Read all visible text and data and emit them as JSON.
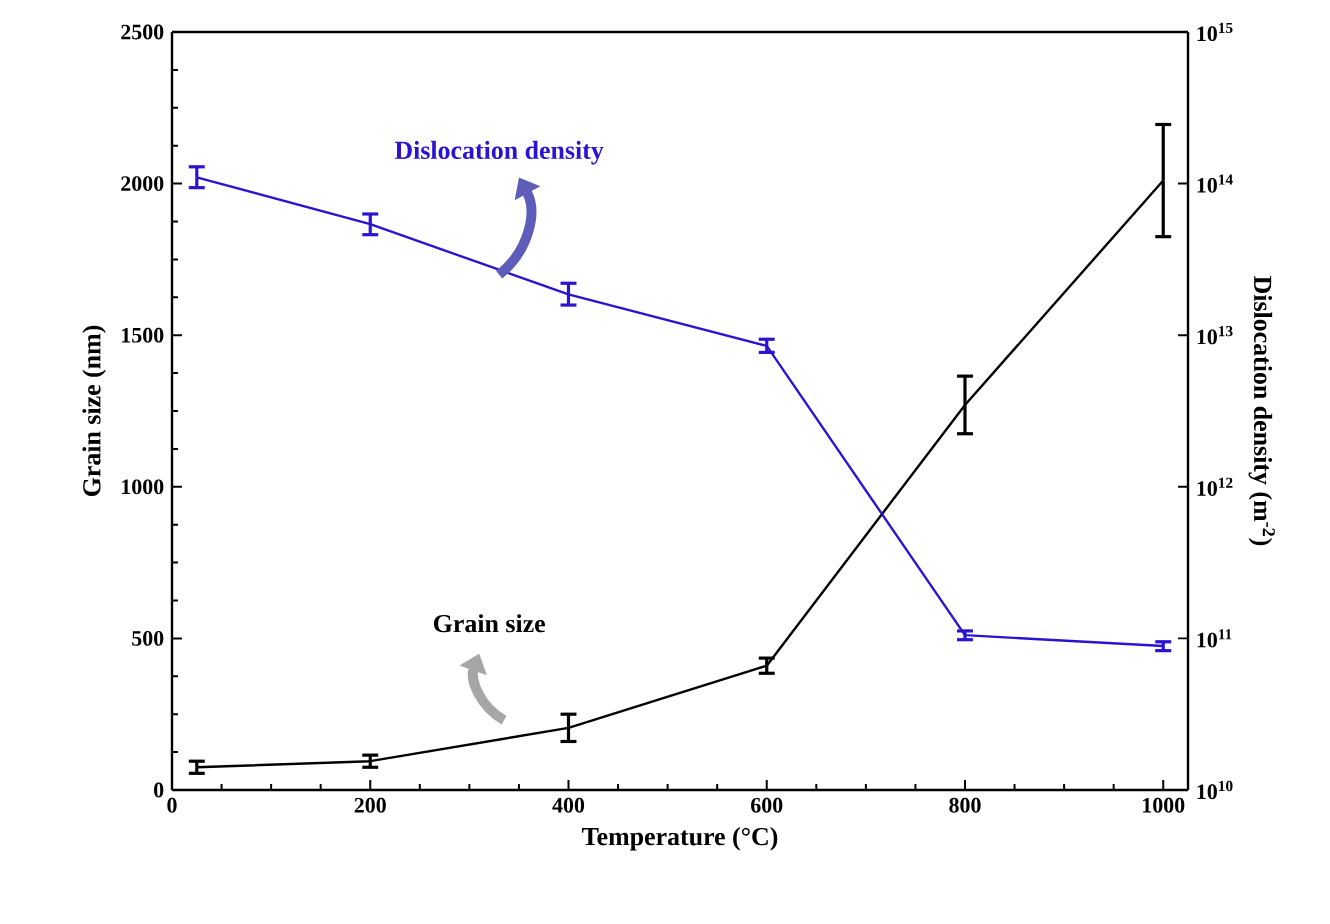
{
  "chart_data": {
    "type": "line",
    "xlabel": "Temperature (°C)",
    "ylabel": "Grain size (nm)",
    "y2label": "Dislocation density (m$^{-2}$)",
    "x": [
      25,
      200,
      400,
      600,
      800,
      1000
    ],
    "xlim": [
      0,
      1025
    ],
    "xticks": [
      0,
      200,
      400,
      600,
      800,
      1000
    ],
    "ylim": [
      0,
      2500
    ],
    "yticks": [
      0,
      500,
      1000,
      1500,
      2000,
      2500
    ],
    "log": "y2",
    "y2lim": [
      10000000000.0,
      1000000000000000.0
    ],
    "y2ticks": [
      {
        "value": 10000000000.0,
        "label": "10$^{10}$"
      },
      {
        "value": 100000000000.0,
        "label": "10$^{11}$"
      },
      {
        "value": 1000000000000.0,
        "label": "10$^{12}$"
      },
      {
        "value": 10000000000000.0,
        "label": "10$^{13}$"
      },
      {
        "value": 100000000000000.0,
        "label": "10$^{14}$"
      },
      {
        "value": 1000000000000000.0,
        "label": "10$^{15}$"
      }
    ],
    "marker": "none",
    "grid": false,
    "series": [
      {
        "name": "Grain size",
        "color": "#000000",
        "values": [
          75,
          95,
          205,
          410,
          1270,
          2010
        ],
        "errors": [
          20,
          20,
          45,
          25,
          95,
          185
        ]
      },
      {
        "name": "Dislocation density",
        "color": "#2a14d2",
        "axis": "y2",
        "values": [
          110000000000000.0,
          54000000000000.0,
          18600000000000.0,
          8500000000000.0,
          105000000000.0,
          89000000000.0
        ],
        "errors": [
          [
            94000000000000.0,
            129000000000000.0
          ],
          [
            46000000000000.0,
            63000000000000.0
          ],
          [
            15800000000000.0,
            22000000000000.0
          ],
          [
            7700000000000.0,
            9400000000000.0
          ],
          [
            98000000000.0,
            112000000000.0
          ],
          [
            83000000000.0,
            95000000000.0
          ]
        ]
      }
    ]
  }
}
